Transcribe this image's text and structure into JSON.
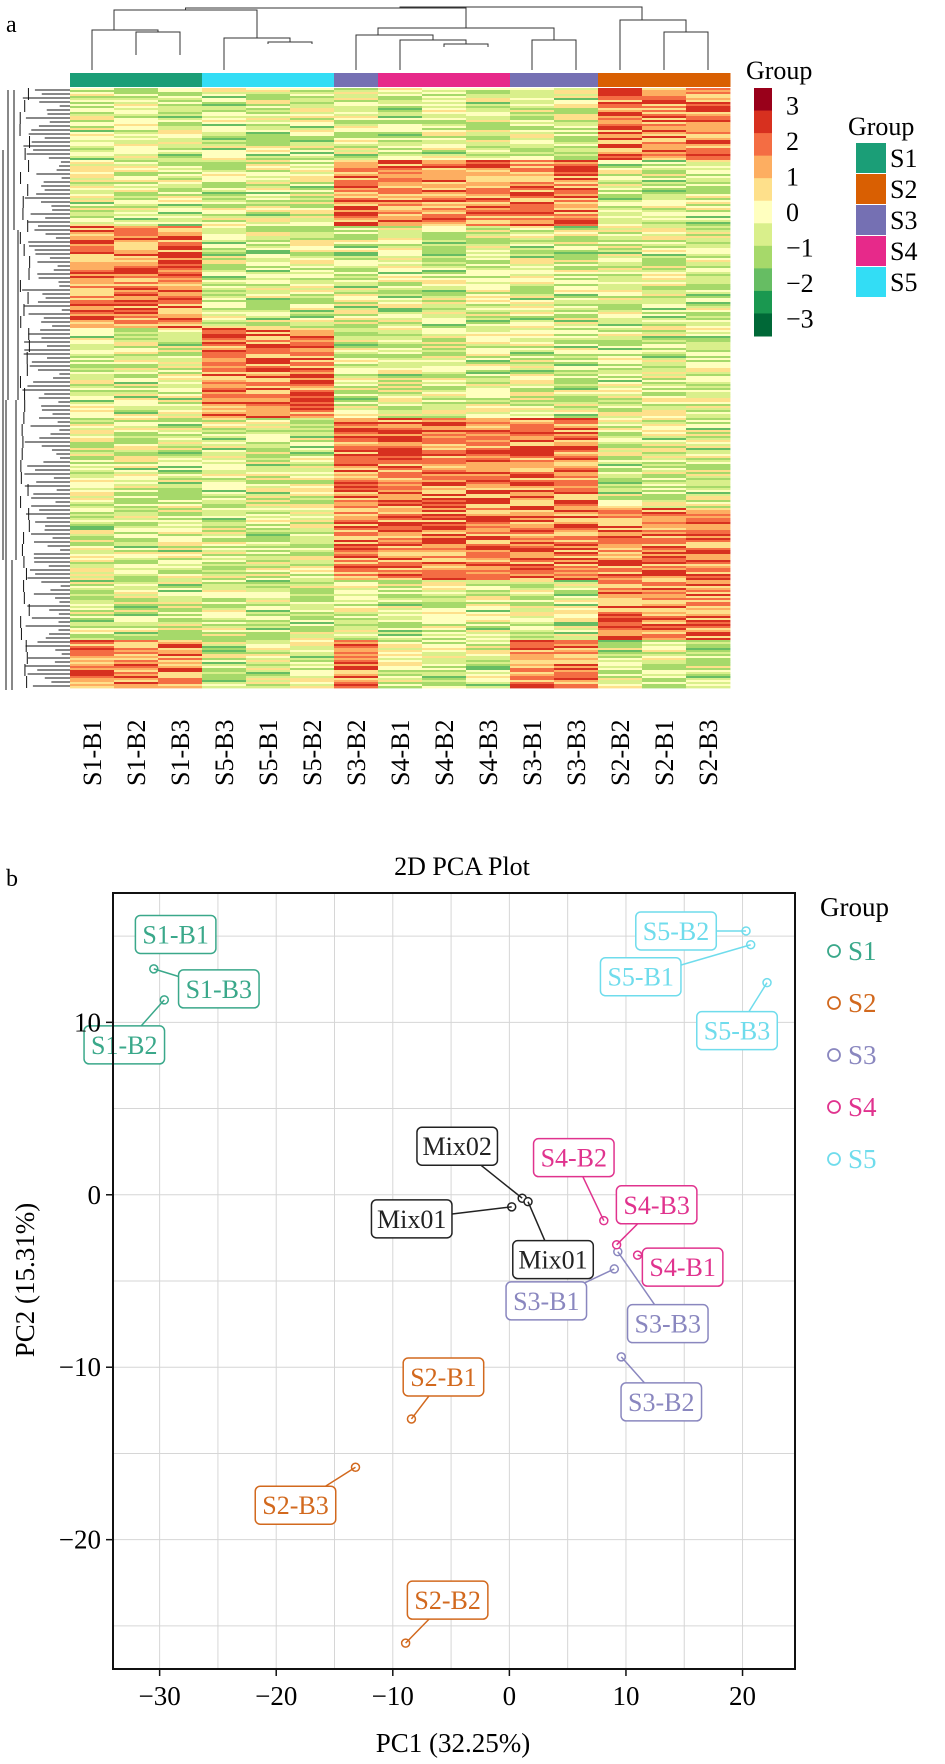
{
  "panel_labels": {
    "a": "a",
    "b": "b"
  },
  "chart_data": [
    {
      "type": "heatmap",
      "columns": [
        "S1-B1",
        "S1-B2",
        "S1-B3",
        "S5-B3",
        "S5-B1",
        "S5-B2",
        "S3-B2",
        "S4-B1",
        "S4-B2",
        "S4-B3",
        "S3-B1",
        "S3-B3",
        "S2-B2",
        "S2-B1",
        "S2-B3"
      ],
      "column_groups": [
        "S1",
        "S1",
        "S1",
        "S5",
        "S5",
        "S5",
        "S3",
        "S4",
        "S4",
        "S4",
        "S3",
        "S3",
        "S2",
        "S2",
        "S2"
      ],
      "color_scale": {
        "title": "Group",
        "range": [
          -3.5,
          3.5
        ],
        "tick_labels": [
          "3",
          "2",
          "1",
          "0",
          "−1",
          "−2",
          "−3"
        ],
        "colors": [
          "#99001a",
          "#d7301f",
          "#f46d43",
          "#fdae61",
          "#fee08b",
          "#ffffbf",
          "#d9ef8b",
          "#a6d96a",
          "#66bd63",
          "#1a9850",
          "#006837"
        ]
      },
      "group_legend": {
        "title": "Group",
        "items": [
          {
            "label": "S1",
            "color": "#1b9e77"
          },
          {
            "label": "S2",
            "color": "#d95f02"
          },
          {
            "label": "S3",
            "color": "#7570b3"
          },
          {
            "label": "S4",
            "color": "#e7298a"
          },
          {
            "label": "S5",
            "color": "#33ddf5"
          }
        ]
      },
      "dendrogram": "hierarchical clustering of rows and columns",
      "grid": false
    },
    {
      "type": "scatter",
      "title": "2D PCA Plot",
      "xlabel": "PC1 (32.25%)",
      "ylabel": "PC2 (15.31%)",
      "xlim": [
        -34,
        24.5
      ],
      "ylim": [
        -27.5,
        17.5
      ],
      "xticks": [
        -30,
        -20,
        -10,
        0,
        10,
        20
      ],
      "yticks": [
        10,
        0,
        -10,
        -20
      ],
      "xtick_labels": [
        "−30",
        "−20",
        "−10",
        "0",
        "10",
        "20"
      ],
      "ytick_labels": [
        "10",
        "0",
        "−10",
        "−20"
      ],
      "grid": true,
      "legend": {
        "title": "Group",
        "placement": "right"
      },
      "series": [
        {
          "name": "S1",
          "color": "#3aa88a",
          "points": [
            {
              "label": "S1-B1",
              "x": -31.2,
              "y": 14.4
            },
            {
              "label": "S1-B3",
              "x": -30.5,
              "y": 13.1
            },
            {
              "label": "S1-B2",
              "x": -29.6,
              "y": 11.3
            }
          ]
        },
        {
          "name": "S2",
          "color": "#d2691e",
          "points": [
            {
              "label": "S2-B1",
              "x": -8.4,
              "y": -13.0
            },
            {
              "label": "S2-B3",
              "x": -13.2,
              "y": -15.8
            },
            {
              "label": "S2-B2",
              "x": -8.9,
              "y": -26.0
            }
          ]
        },
        {
          "name": "S3",
          "color": "#8a87bf",
          "points": [
            {
              "label": "S3-B1",
              "x": 9.0,
              "y": -4.3
            },
            {
              "label": "S3-B3",
              "x": 9.3,
              "y": -3.3
            },
            {
              "label": "S3-B2",
              "x": 9.6,
              "y": -9.4
            }
          ]
        },
        {
          "name": "S4",
          "color": "#e0338e",
          "points": [
            {
              "label": "S4-B2",
              "x": 8.1,
              "y": -1.5
            },
            {
              "label": "S4-B3",
              "x": 9.2,
              "y": -2.9
            },
            {
              "label": "S4-B1",
              "x": 11.0,
              "y": -3.5
            }
          ]
        },
        {
          "name": "S5",
          "color": "#6fdcec",
          "points": [
            {
              "label": "S5-B2",
              "x": 20.3,
              "y": 15.3
            },
            {
              "label": "S5-B1",
              "x": 20.7,
              "y": 14.5
            },
            {
              "label": "S5-B3",
              "x": 22.1,
              "y": 12.3
            }
          ]
        }
      ],
      "unlabeled_group_points": [
        {
          "label": "Mix02",
          "x": 1.1,
          "y": -0.2,
          "color": "#222222"
        },
        {
          "label": "Mix01",
          "x": 0.2,
          "y": -0.7,
          "color": "#222222"
        },
        {
          "label": "Mix01",
          "x": 1.6,
          "y": -0.4,
          "color": "#222222"
        }
      ]
    }
  ]
}
